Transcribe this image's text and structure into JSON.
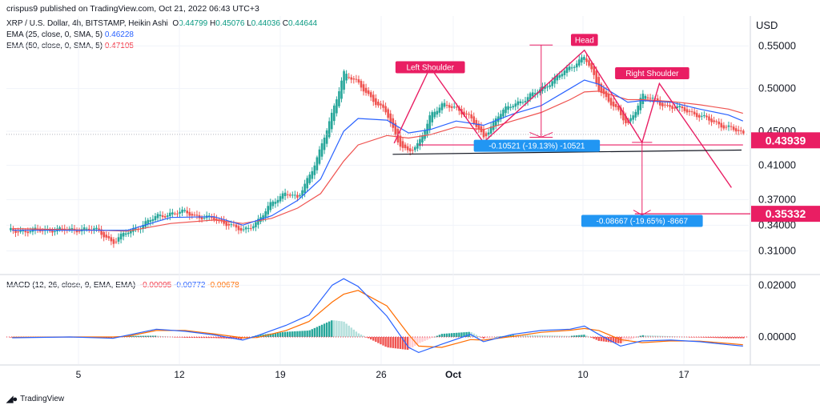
{
  "publisher": "crispus9 published on TradingView.com, Oct 21, 2022 06:43 UTC+3",
  "symbol": {
    "name": "XRP / U.S. Dollar, 4h, BITSTAMP, Heikin Ashi",
    "o_label": "O",
    "o": "0.44799",
    "h_label": "H",
    "h": "0.45076",
    "l_label": "L",
    "l": "0.44036",
    "c_label": "C",
    "c": "0.44644"
  },
  "ema25": {
    "label": "EMA (25, close, 0, SMA, 5)",
    "value": "0.46228",
    "color": "#2962ff"
  },
  "ema50": {
    "label": "EMA (50, close, 0, SMA, 5)",
    "value": "0.47105",
    "color": "#f23645"
  },
  "macd_legend": {
    "label": "MACD (12, 26, close, 9, EMA, EMA)",
    "v1": "-0.00095",
    "v2": "-0.00772",
    "v3": "-0.00678"
  },
  "currency": "USD",
  "footer": "TradingView",
  "colors": {
    "up": "#26a69a",
    "down": "#ef5350",
    "pattern": "#e91e63",
    "measure": "#2196f3",
    "macd": "#2962ff",
    "signal": "#ff6d00"
  },
  "chart_data": [
    {
      "type": "candlestick",
      "title": "XRP / U.S. Dollar, 4h, BITSTAMP, Heikin Ashi",
      "x_tick_labels": [
        "5",
        "12",
        "19",
        "26",
        "Oct",
        "10",
        "17"
      ],
      "x_tick_days": [
        5,
        12,
        19,
        26,
        31,
        40,
        47
      ],
      "y_tick_labels": [
        "0.55000",
        "0.50000",
        "0.45000",
        "0.41000",
        "0.37000",
        "0.34000",
        "0.31000"
      ],
      "ylim": [
        0.285,
        0.585
      ],
      "xlim": [
        0,
        51.5
      ],
      "grid": true,
      "price_labels": [
        {
          "text": "0.43939",
          "value": 0.43939,
          "color": "#e91e63"
        },
        {
          "text": "0.35332",
          "value": 0.35332,
          "color": "#e91e63"
        }
      ],
      "close_series": [
        [
          0.4,
          0.334
        ],
        [
          1.4,
          0.333
        ],
        [
          2.4,
          0.334
        ],
        [
          3.4,
          0.335
        ],
        [
          4.4,
          0.334
        ],
        [
          5.4,
          0.336
        ],
        [
          6.4,
          0.333
        ],
        [
          7.4,
          0.32
        ],
        [
          8.4,
          0.332
        ],
        [
          9.4,
          0.34
        ],
        [
          10.4,
          0.35
        ],
        [
          11.4,
          0.354
        ],
        [
          12.4,
          0.355
        ],
        [
          13.4,
          0.35
        ],
        [
          14.4,
          0.347
        ],
        [
          15.4,
          0.342
        ],
        [
          16.4,
          0.332
        ],
        [
          17.4,
          0.345
        ],
        [
          18.4,
          0.365
        ],
        [
          19.4,
          0.38
        ],
        [
          20.2,
          0.37
        ],
        [
          21,
          0.398
        ],
        [
          21.8,
          0.43
        ],
        [
          22.6,
          0.47
        ],
        [
          23.4,
          0.52
        ],
        [
          24.4,
          0.505
        ],
        [
          25.4,
          0.488
        ],
        [
          26.4,
          0.47
        ],
        [
          27.1,
          0.44
        ],
        [
          27.9,
          0.425
        ],
        [
          28.6,
          0.434
        ],
        [
          29.4,
          0.47
        ],
        [
          30.2,
          0.48
        ],
        [
          31.2,
          0.478
        ],
        [
          32.2,
          0.465
        ],
        [
          33.1,
          0.443
        ],
        [
          34.1,
          0.468
        ],
        [
          35.1,
          0.482
        ],
        [
          36.1,
          0.488
        ],
        [
          37.1,
          0.5
        ],
        [
          38.1,
          0.512
        ],
        [
          39.1,
          0.525
        ],
        [
          40.1,
          0.538
        ],
        [
          41.1,
          0.5
        ],
        [
          42.1,
          0.48
        ],
        [
          43.1,
          0.457
        ],
        [
          44.1,
          0.492
        ],
        [
          45.1,
          0.485
        ],
        [
          46.1,
          0.478
        ],
        [
          47.1,
          0.475
        ],
        [
          48.1,
          0.468
        ],
        [
          49.1,
          0.46
        ],
        [
          50.1,
          0.455
        ],
        [
          51.1,
          0.446
        ]
      ],
      "ema25_series": [
        [
          0.4,
          0.334
        ],
        [
          6.4,
          0.334
        ],
        [
          8.4,
          0.334
        ],
        [
          11.4,
          0.349
        ],
        [
          14.4,
          0.35
        ],
        [
          16.4,
          0.34
        ],
        [
          18.4,
          0.351
        ],
        [
          20.2,
          0.369
        ],
        [
          21.8,
          0.394
        ],
        [
          23.4,
          0.45
        ],
        [
          24.4,
          0.465
        ],
        [
          26.4,
          0.463
        ],
        [
          27.9,
          0.448
        ],
        [
          29.4,
          0.452
        ],
        [
          31.2,
          0.462
        ],
        [
          33.1,
          0.457
        ],
        [
          35.1,
          0.47
        ],
        [
          37.1,
          0.48
        ],
        [
          39.1,
          0.5
        ],
        [
          40.1,
          0.51
        ],
        [
          41.1,
          0.505
        ],
        [
          43.1,
          0.484
        ],
        [
          44.1,
          0.486
        ],
        [
          46.1,
          0.484
        ],
        [
          48.1,
          0.476
        ],
        [
          50.1,
          0.469
        ],
        [
          51.1,
          0.462
        ]
      ],
      "ema50_series": [
        [
          0.4,
          0.336
        ],
        [
          6.4,
          0.334
        ],
        [
          8.4,
          0.333
        ],
        [
          11.4,
          0.342
        ],
        [
          14.4,
          0.346
        ],
        [
          16.4,
          0.342
        ],
        [
          18.4,
          0.348
        ],
        [
          20.2,
          0.36
        ],
        [
          21.8,
          0.377
        ],
        [
          23.4,
          0.415
        ],
        [
          24.4,
          0.434
        ],
        [
          26.4,
          0.445
        ],
        [
          27.9,
          0.442
        ],
        [
          29.4,
          0.446
        ],
        [
          31.2,
          0.455
        ],
        [
          33.1,
          0.452
        ],
        [
          35.1,
          0.462
        ],
        [
          37.1,
          0.472
        ],
        [
          39.1,
          0.487
        ],
        [
          40.1,
          0.496
        ],
        [
          41.1,
          0.497
        ],
        [
          43.1,
          0.487
        ],
        [
          44.1,
          0.487
        ],
        [
          46.1,
          0.485
        ],
        [
          48.1,
          0.481
        ],
        [
          50.1,
          0.476
        ],
        [
          51.1,
          0.471
        ]
      ],
      "annotations": [
        {
          "text": "Left Shoulder",
          "x": 29.4,
          "y": 0.525,
          "color": "#e91e63"
        },
        {
          "text": "Head",
          "x": 40.1,
          "y": 0.557,
          "color": "#e91e63"
        },
        {
          "text": "Right Shoulder",
          "x": 44.8,
          "y": 0.518,
          "color": "#e91e63"
        },
        {
          "text": "-0.10521 (-19.13%) -10521",
          "x": 36.8,
          "y": 0.433,
          "color": "#2196f3"
        },
        {
          "text": "-0.08667 (-19.65%) -8667",
          "x": 44.1,
          "y": 0.345,
          "color": "#2196f3"
        }
      ]
    },
    {
      "type": "macd",
      "title": "MACD (12, 26, close, 9, EMA, EMA)",
      "y_tick_labels": [
        "0.02000",
        "0.00000"
      ],
      "ylim": [
        -0.0105,
        0.0235
      ],
      "macd_series": [
        [
          0.4,
          -0.0003
        ],
        [
          4.4,
          0.0
        ],
        [
          7.4,
          -0.0005
        ],
        [
          8.4,
          0.0007
        ],
        [
          10.4,
          0.003
        ],
        [
          12.4,
          0.0022
        ],
        [
          14.4,
          0.0008
        ],
        [
          16.4,
          -0.0012
        ],
        [
          17.4,
          0.0005
        ],
        [
          19.4,
          0.0045
        ],
        [
          21,
          0.0085
        ],
        [
          22.6,
          0.02
        ],
        [
          23.4,
          0.0225
        ],
        [
          24.4,
          0.0195
        ],
        [
          26.4,
          0.008
        ],
        [
          27.9,
          -0.004
        ],
        [
          28.6,
          -0.006
        ],
        [
          30.2,
          -0.0028
        ],
        [
          32.2,
          0.001
        ],
        [
          33.1,
          -0.0018
        ],
        [
          35.1,
          0.001
        ],
        [
          37.1,
          0.0025
        ],
        [
          39.1,
          0.003
        ],
        [
          40.1,
          0.0042
        ],
        [
          41.1,
          0.001
        ],
        [
          42.6,
          -0.0035
        ],
        [
          44.1,
          -0.0015
        ],
        [
          46.1,
          -0.0012
        ],
        [
          48.1,
          -0.0018
        ],
        [
          50.1,
          -0.003
        ],
        [
          51.1,
          -0.0035
        ]
      ],
      "signal_series": [
        [
          0.4,
          -0.0001
        ],
        [
          4.4,
          0.0
        ],
        [
          7.4,
          0.0
        ],
        [
          8.4,
          0.0003
        ],
        [
          10.4,
          0.0025
        ],
        [
          12.4,
          0.0025
        ],
        [
          14.4,
          0.0012
        ],
        [
          16.4,
          -0.0003
        ],
        [
          17.4,
          -0.0002
        ],
        [
          19.4,
          0.0025
        ],
        [
          21,
          0.006
        ],
        [
          22.6,
          0.0135
        ],
        [
          23.4,
          0.0165
        ],
        [
          24.4,
          0.018
        ],
        [
          26.4,
          0.012
        ],
        [
          27.9,
          0.001
        ],
        [
          28.6,
          -0.0035
        ],
        [
          30.2,
          -0.004
        ],
        [
          32.2,
          -0.001
        ],
        [
          33.1,
          -0.0012
        ],
        [
          35.1,
          0.0002
        ],
        [
          37.1,
          0.0018
        ],
        [
          39.1,
          0.0026
        ],
        [
          40.1,
          0.0033
        ],
        [
          41.1,
          0.0025
        ],
        [
          42.6,
          -0.001
        ],
        [
          44.1,
          -0.0022
        ],
        [
          46.1,
          -0.0015
        ],
        [
          48.1,
          -0.0016
        ],
        [
          50.1,
          -0.0025
        ],
        [
          51.1,
          -0.003
        ]
      ]
    }
  ]
}
